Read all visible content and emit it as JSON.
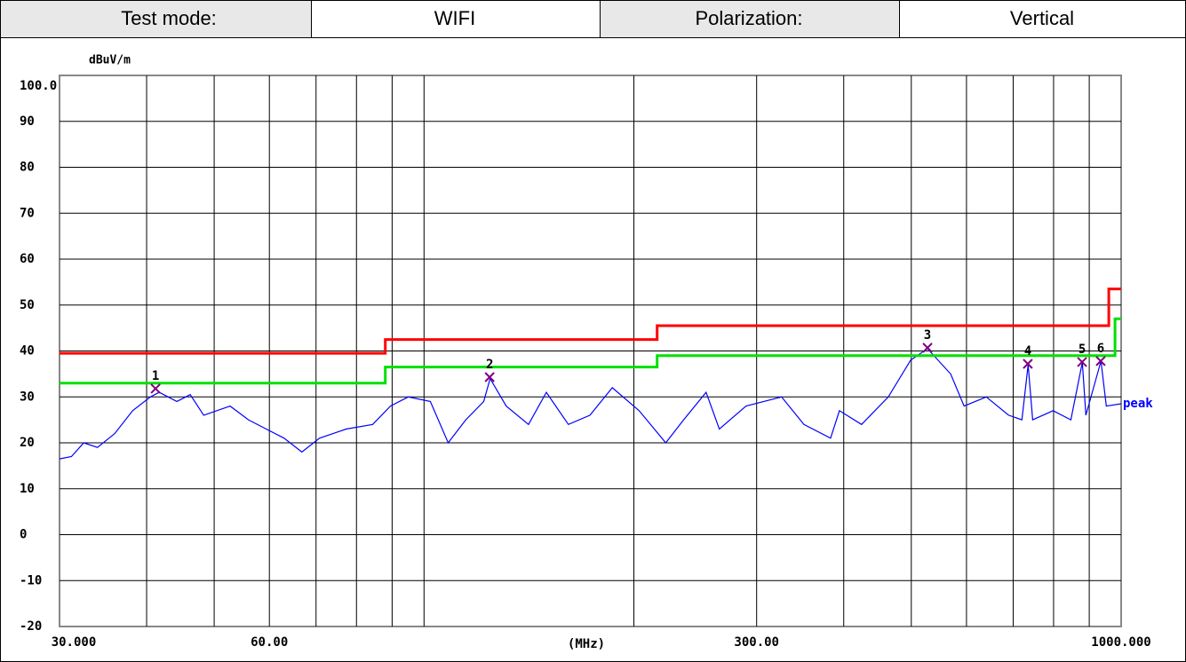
{
  "header": {
    "cells": [
      "Test mode:",
      "WIFI",
      "Polarization:",
      "Vertical"
    ]
  },
  "chart_data": {
    "type": "line",
    "x_scale": "log",
    "grid": true,
    "y_label": "dBuV/m",
    "x_label": "(MHz)",
    "xlim": [
      30,
      1000
    ],
    "ylim": [
      -20,
      100
    ],
    "xticks": [
      {
        "value": 30,
        "label": "30.000"
      },
      {
        "value": 60,
        "label": "60.00"
      },
      {
        "value": 300,
        "label": "300.00"
      },
      {
        "value": 1000,
        "label": "1000.000"
      }
    ],
    "xgrid": [
      40,
      50,
      60,
      70,
      80,
      90,
      100,
      200,
      300,
      400,
      500,
      600,
      700,
      800,
      900
    ],
    "yticks": [
      {
        "value": 100,
        "label": "100.0"
      },
      90,
      80,
      70,
      60,
      50,
      40,
      30,
      20,
      10,
      0,
      -10,
      -20
    ],
    "series": [
      {
        "name": "peak",
        "color": "#0000ff",
        "x": [
          30,
          31.2,
          32.5,
          34.0,
          36.0,
          38.2,
          40.5,
          41.7,
          44.2,
          46.2,
          48.3,
          52.7,
          56.0,
          59.4,
          63.0,
          66.8,
          70.8,
          77.3,
          84.4,
          89.5,
          94.9,
          102.1,
          108.3,
          114.8,
          121.8,
          124.4,
          131.2,
          141.2,
          149.8,
          161.1,
          173.0,
          186.2,
          203.5,
          222.2,
          235.7,
          253.9,
          265.2,
          289.7,
          325.8,
          350.7,
          383.0,
          394.4,
          424.3,
          463.5,
          498.8,
          527.5,
          569.5,
          595.2,
          640.5,
          689.5,
          720.6,
          735.5,
          746.5,
          798.6,
          846.9,
          879.7,
          890.1,
          935.6,
          952.3,
          1000
        ],
        "values": [
          16.5,
          17,
          20,
          19,
          22,
          27,
          30,
          31,
          29,
          30.5,
          26,
          28,
          25,
          23,
          21,
          18,
          21,
          23,
          24,
          28,
          30,
          29,
          20,
          25,
          29,
          34,
          28,
          24,
          31,
          24,
          26,
          32,
          27,
          20,
          25,
          31,
          23,
          28,
          30,
          24,
          21,
          27,
          24,
          30,
          38,
          40.5,
          35,
          28,
          30,
          26,
          25,
          37,
          25,
          27,
          25,
          37.5,
          26,
          37.8,
          28,
          28.5
        ]
      },
      {
        "color": "#ff0000",
        "x": [
          30,
          88,
          88,
          216,
          216,
          960,
          960,
          1000
        ],
        "values": [
          39.5,
          39.5,
          42.5,
          42.5,
          45.5,
          45.5,
          53.5,
          53.5
        ]
      },
      {
        "color": "#00e000",
        "x": [
          30,
          88,
          88,
          216,
          216,
          980,
          980,
          1000
        ],
        "values": [
          33,
          33,
          36.5,
          36.5,
          39,
          39,
          47,
          47
        ]
      }
    ],
    "markers": {
      "color": "#800080",
      "labels": [
        "1",
        "2",
        "3",
        "4",
        "5",
        "6"
      ],
      "x": [
        41.2,
        124.2,
        527.5,
        734.7,
        879,
        934.6
      ],
      "values": [
        31.8,
        34.3,
        40.7,
        37.2,
        37.6,
        37.8
      ]
    }
  }
}
